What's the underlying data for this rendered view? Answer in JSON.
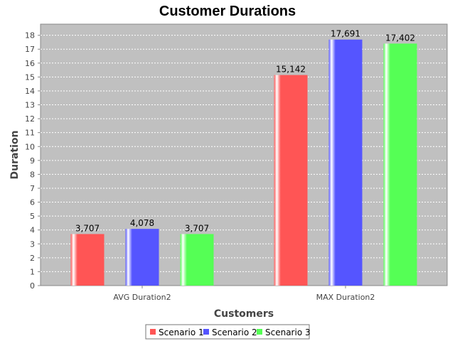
{
  "chart_data": {
    "type": "bar",
    "title": "Customer Durations",
    "xlabel": "Customers",
    "ylabel": "Duration",
    "categories": [
      "AVG Duration2",
      "MAX Duration2"
    ],
    "series": [
      {
        "name": "Scenario 1",
        "color": "#ff5555",
        "values": [
          3.707,
          15.142
        ],
        "labels": [
          "3,707",
          "15,142"
        ]
      },
      {
        "name": "Scenario 2",
        "color": "#5555ff",
        "values": [
          4.078,
          17.691
        ],
        "labels": [
          "4,078",
          "17,691"
        ]
      },
      {
        "name": "Scenario 3",
        "color": "#55ff55",
        "values": [
          3.707,
          17.402
        ],
        "labels": [
          "3,707",
          "17,402"
        ]
      }
    ],
    "ylim": [
      0,
      18.8
    ],
    "yticks": [
      0,
      1,
      2,
      3,
      4,
      5,
      6,
      7,
      8,
      9,
      10,
      11,
      12,
      13,
      14,
      15,
      16,
      17,
      18
    ],
    "grid": true,
    "legend": "bottom-center",
    "plot_background": "#c0c0c0"
  }
}
